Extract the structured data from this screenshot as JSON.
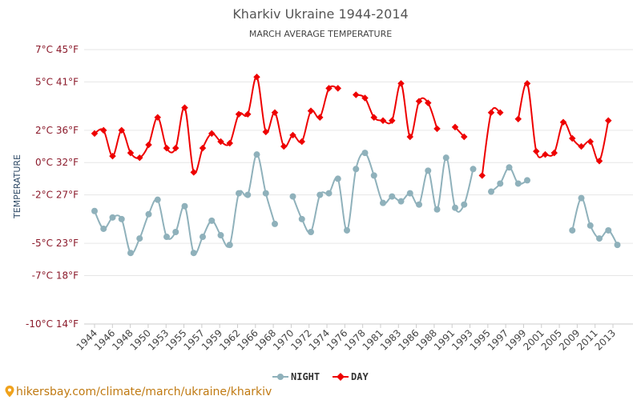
{
  "chart_data": {
    "type": "line",
    "title": "Kharkiv Ukraine 1944-2014",
    "subtitle": "MARCH AVERAGE TEMPERATURE",
    "ylabel": "TEMPERATURE",
    "ylim": [
      -10,
      7
    ],
    "y_ticks": [
      {
        "value": 7,
        "label": "7°C 45°F"
      },
      {
        "value": 5,
        "label": "5°C 41°F"
      },
      {
        "value": 2,
        "label": "2°C 36°F"
      },
      {
        "value": 0,
        "label": "0°C 32°F"
      },
      {
        "value": -2,
        "label": "-2°C 27°F"
      },
      {
        "value": -5,
        "label": "-5°C 23°F"
      },
      {
        "value": -7,
        "label": "-7°C 18°F"
      },
      {
        "value": -10,
        "label": "-10°C 14°F"
      }
    ],
    "x_tick_labels": [
      "1944",
      "1946",
      "1948",
      "1950",
      "1953",
      "1955",
      "1957",
      "1959",
      "1962",
      "1966",
      "1968",
      "1970",
      "1972",
      "1974",
      "1976",
      "1978",
      "1981",
      "1983",
      "1986",
      "1988",
      "1991",
      "1993",
      "1995",
      "1997",
      "1999",
      "2001",
      "2005",
      "2009",
      "2011",
      "2013"
    ],
    "grid": true,
    "legend": "bottom-center",
    "series": [
      {
        "name": "NIGHT",
        "color": "#8fb1bb",
        "values": [
          -3.0,
          -4.1,
          -3.4,
          -3.5,
          -5.6,
          -4.7,
          -3.2,
          -2.3,
          -4.6,
          -4.3,
          -2.7,
          -5.6,
          -4.6,
          -3.6,
          -4.5,
          -5.1,
          -1.9,
          -2.0,
          0.5,
          -1.9,
          -3.8,
          null,
          -2.1,
          -3.5,
          -4.3,
          -2.0,
          -1.9,
          -1.0,
          -4.2,
          -0.4,
          0.6,
          -0.8,
          -2.5,
          -2.1,
          -2.4,
          -1.9,
          -2.6,
          -0.5,
          -2.9,
          0.3,
          -2.8,
          -2.6,
          -0.4,
          null,
          -1.8,
          -1.3,
          -0.3,
          -1.3,
          -1.1,
          null,
          null,
          null,
          null,
          -4.2,
          -2.2,
          -3.9,
          -4.7,
          -4.2,
          -5.1,
          null
        ],
        "marker": "circle"
      },
      {
        "name": "DAY",
        "color": "#ee0000",
        "values": [
          1.8,
          2.0,
          0.4,
          2.0,
          0.6,
          0.3,
          1.1,
          2.8,
          0.9,
          0.9,
          3.4,
          -0.6,
          0.9,
          1.8,
          1.3,
          1.2,
          3.0,
          3.0,
          5.3,
          1.9,
          3.1,
          1.0,
          1.7,
          1.3,
          3.2,
          2.8,
          4.6,
          4.6,
          null,
          4.2,
          4.0,
          2.8,
          2.6,
          2.6,
          4.9,
          1.6,
          3.8,
          3.7,
          2.1,
          null,
          2.2,
          1.6,
          null,
          -0.8,
          3.1,
          3.1,
          null,
          2.7,
          4.9,
          0.7,
          0.5,
          0.6,
          2.5,
          1.5,
          1.0,
          1.3,
          0.1,
          2.6,
          null,
          null
        ],
        "marker": "diamond"
      }
    ]
  },
  "legend": {
    "night_label": "NIGHT",
    "day_label": "DAY"
  },
  "source_text": "hikersbay.com/climate/march/ukraine/kharkiv"
}
